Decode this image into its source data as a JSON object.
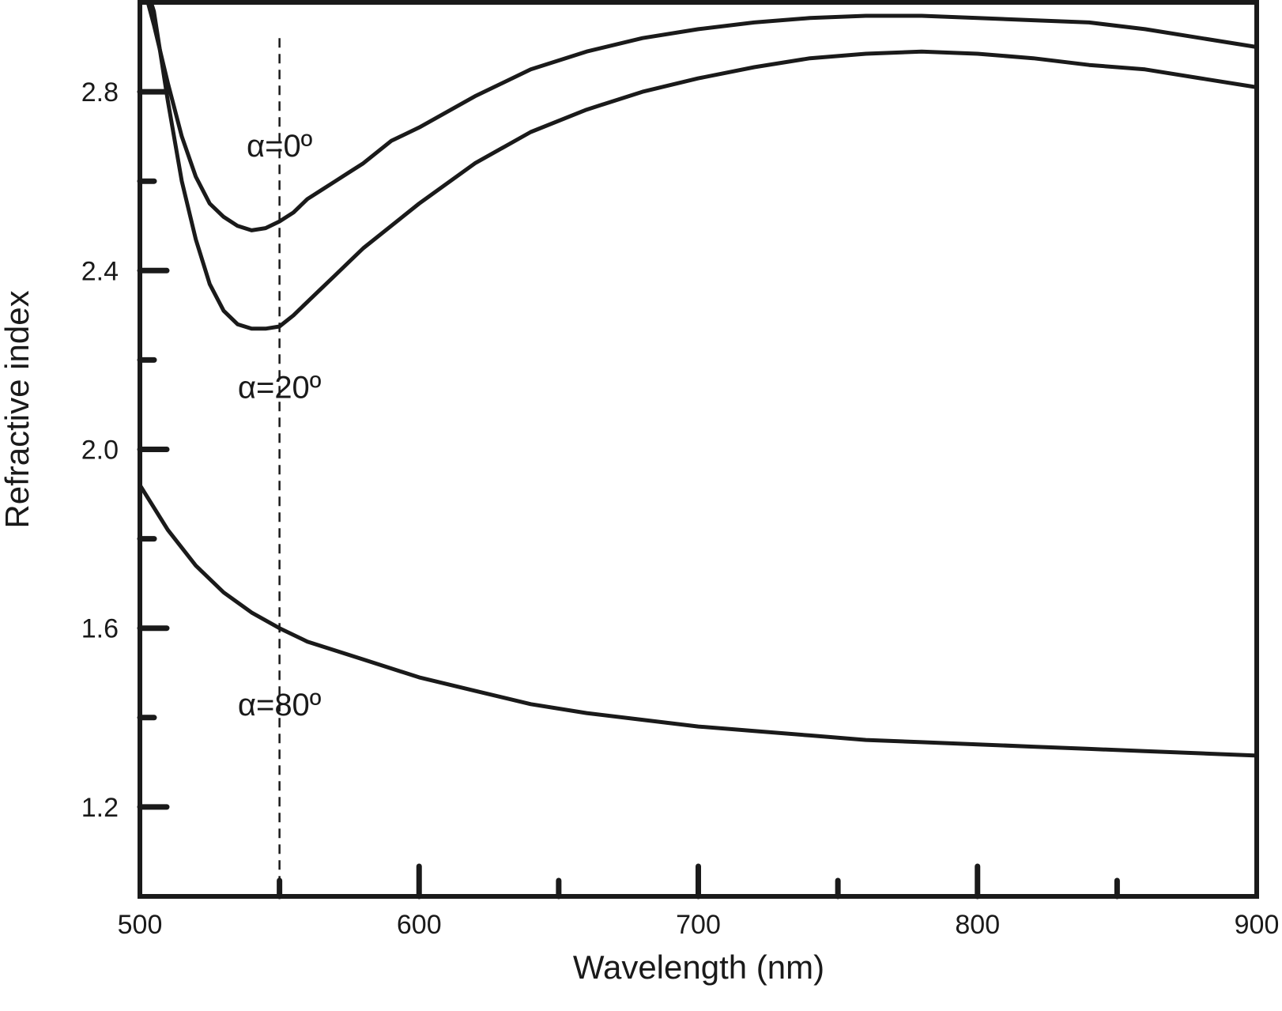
{
  "chart_data": {
    "type": "line",
    "xlabel": "Wavelength (nm)",
    "ylabel": "Refractive index",
    "xlim": [
      500,
      900
    ],
    "ylim": [
      1.0,
      3.0
    ],
    "x_ticks_major": [
      500,
      600,
      700,
      800,
      900
    ],
    "x_ticks_minor": [
      550,
      650,
      750,
      850
    ],
    "y_ticks_major": [
      1.2,
      1.6,
      2.0,
      2.4,
      2.8
    ],
    "y_ticks_minor": [
      1.4,
      1.8,
      2.2,
      2.6
    ],
    "x_tick_labels": [
      "500",
      "600",
      "700",
      "800",
      "900"
    ],
    "y_tick_labels": [
      "1.2",
      "1.6",
      "2.0",
      "2.4",
      "2.8"
    ],
    "grid": false,
    "reference_line": {
      "x": 550,
      "style": "dashed"
    },
    "series": [
      {
        "name": "α=0º",
        "x": [
          502,
          505,
          510,
          515,
          520,
          525,
          530,
          535,
          540,
          545,
          550,
          555,
          560,
          565,
          570,
          575,
          580,
          590,
          600,
          620,
          640,
          660,
          680,
          700,
          720,
          740,
          760,
          780,
          800,
          820,
          840,
          860,
          880,
          900
        ],
        "y": [
          3.02,
          2.95,
          2.82,
          2.7,
          2.61,
          2.55,
          2.52,
          2.5,
          2.49,
          2.495,
          2.51,
          2.53,
          2.56,
          2.58,
          2.6,
          2.62,
          2.64,
          2.69,
          2.72,
          2.79,
          2.85,
          2.89,
          2.92,
          2.94,
          2.955,
          2.965,
          2.97,
          2.97,
          2.965,
          2.96,
          2.955,
          2.94,
          2.92,
          2.9
        ]
      },
      {
        "name": "α=20º",
        "x": [
          503,
          505,
          510,
          515,
          520,
          525,
          530,
          535,
          540,
          545,
          550,
          555,
          560,
          565,
          570,
          575,
          580,
          590,
          600,
          620,
          640,
          660,
          680,
          700,
          720,
          740,
          760,
          780,
          800,
          820,
          840,
          860,
          880,
          900
        ],
        "y": [
          3.02,
          2.98,
          2.78,
          2.6,
          2.47,
          2.37,
          2.31,
          2.28,
          2.27,
          2.27,
          2.275,
          2.3,
          2.33,
          2.36,
          2.39,
          2.42,
          2.45,
          2.5,
          2.55,
          2.64,
          2.71,
          2.76,
          2.8,
          2.83,
          2.855,
          2.875,
          2.885,
          2.89,
          2.885,
          2.875,
          2.86,
          2.85,
          2.83,
          2.81
        ]
      },
      {
        "name": "α=80º",
        "x": [
          500,
          510,
          520,
          530,
          540,
          550,
          560,
          570,
          580,
          600,
          620,
          640,
          660,
          680,
          700,
          720,
          740,
          760,
          780,
          800,
          820,
          840,
          860,
          880,
          900
        ],
        "y": [
          1.92,
          1.82,
          1.74,
          1.68,
          1.635,
          1.6,
          1.57,
          1.55,
          1.53,
          1.49,
          1.46,
          1.43,
          1.41,
          1.395,
          1.38,
          1.37,
          1.36,
          1.35,
          1.345,
          1.34,
          1.335,
          1.33,
          1.325,
          1.32,
          1.315
        ]
      }
    ],
    "annotations": [
      {
        "text": "α=0º",
        "x": 550,
        "y": 2.68
      },
      {
        "text": "α=20º",
        "x": 550,
        "y": 2.14
      },
      {
        "text": "α=80º",
        "x": 550,
        "y": 1.43
      }
    ]
  },
  "colors": {
    "line": "#1a1a1a",
    "background": "#ffffff"
  }
}
